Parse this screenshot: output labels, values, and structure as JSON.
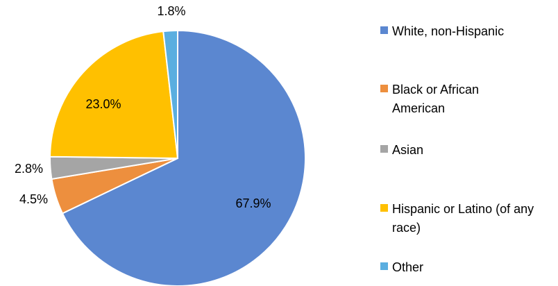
{
  "chart_data": {
    "type": "pie",
    "title": "",
    "slices": [
      {
        "label": "White, non-Hispanic",
        "value": 67.9,
        "value_label": "67.9%",
        "color": "#5b87d0"
      },
      {
        "label": "Black or African American",
        "value": 4.5,
        "value_label": "4.5%",
        "color": "#ed8f3e"
      },
      {
        "label": "Asian",
        "value": 2.8,
        "value_label": "2.8%",
        "color": "#a5a5a5"
      },
      {
        "label": "Hispanic or Latino (of any race)",
        "value": 23.0,
        "value_label": "23.0%",
        "color": "#ffc000"
      },
      {
        "label": "Other",
        "value": 1.8,
        "value_label": "1.8%",
        "color": "#5aaee0"
      }
    ],
    "legend_position": "right"
  }
}
